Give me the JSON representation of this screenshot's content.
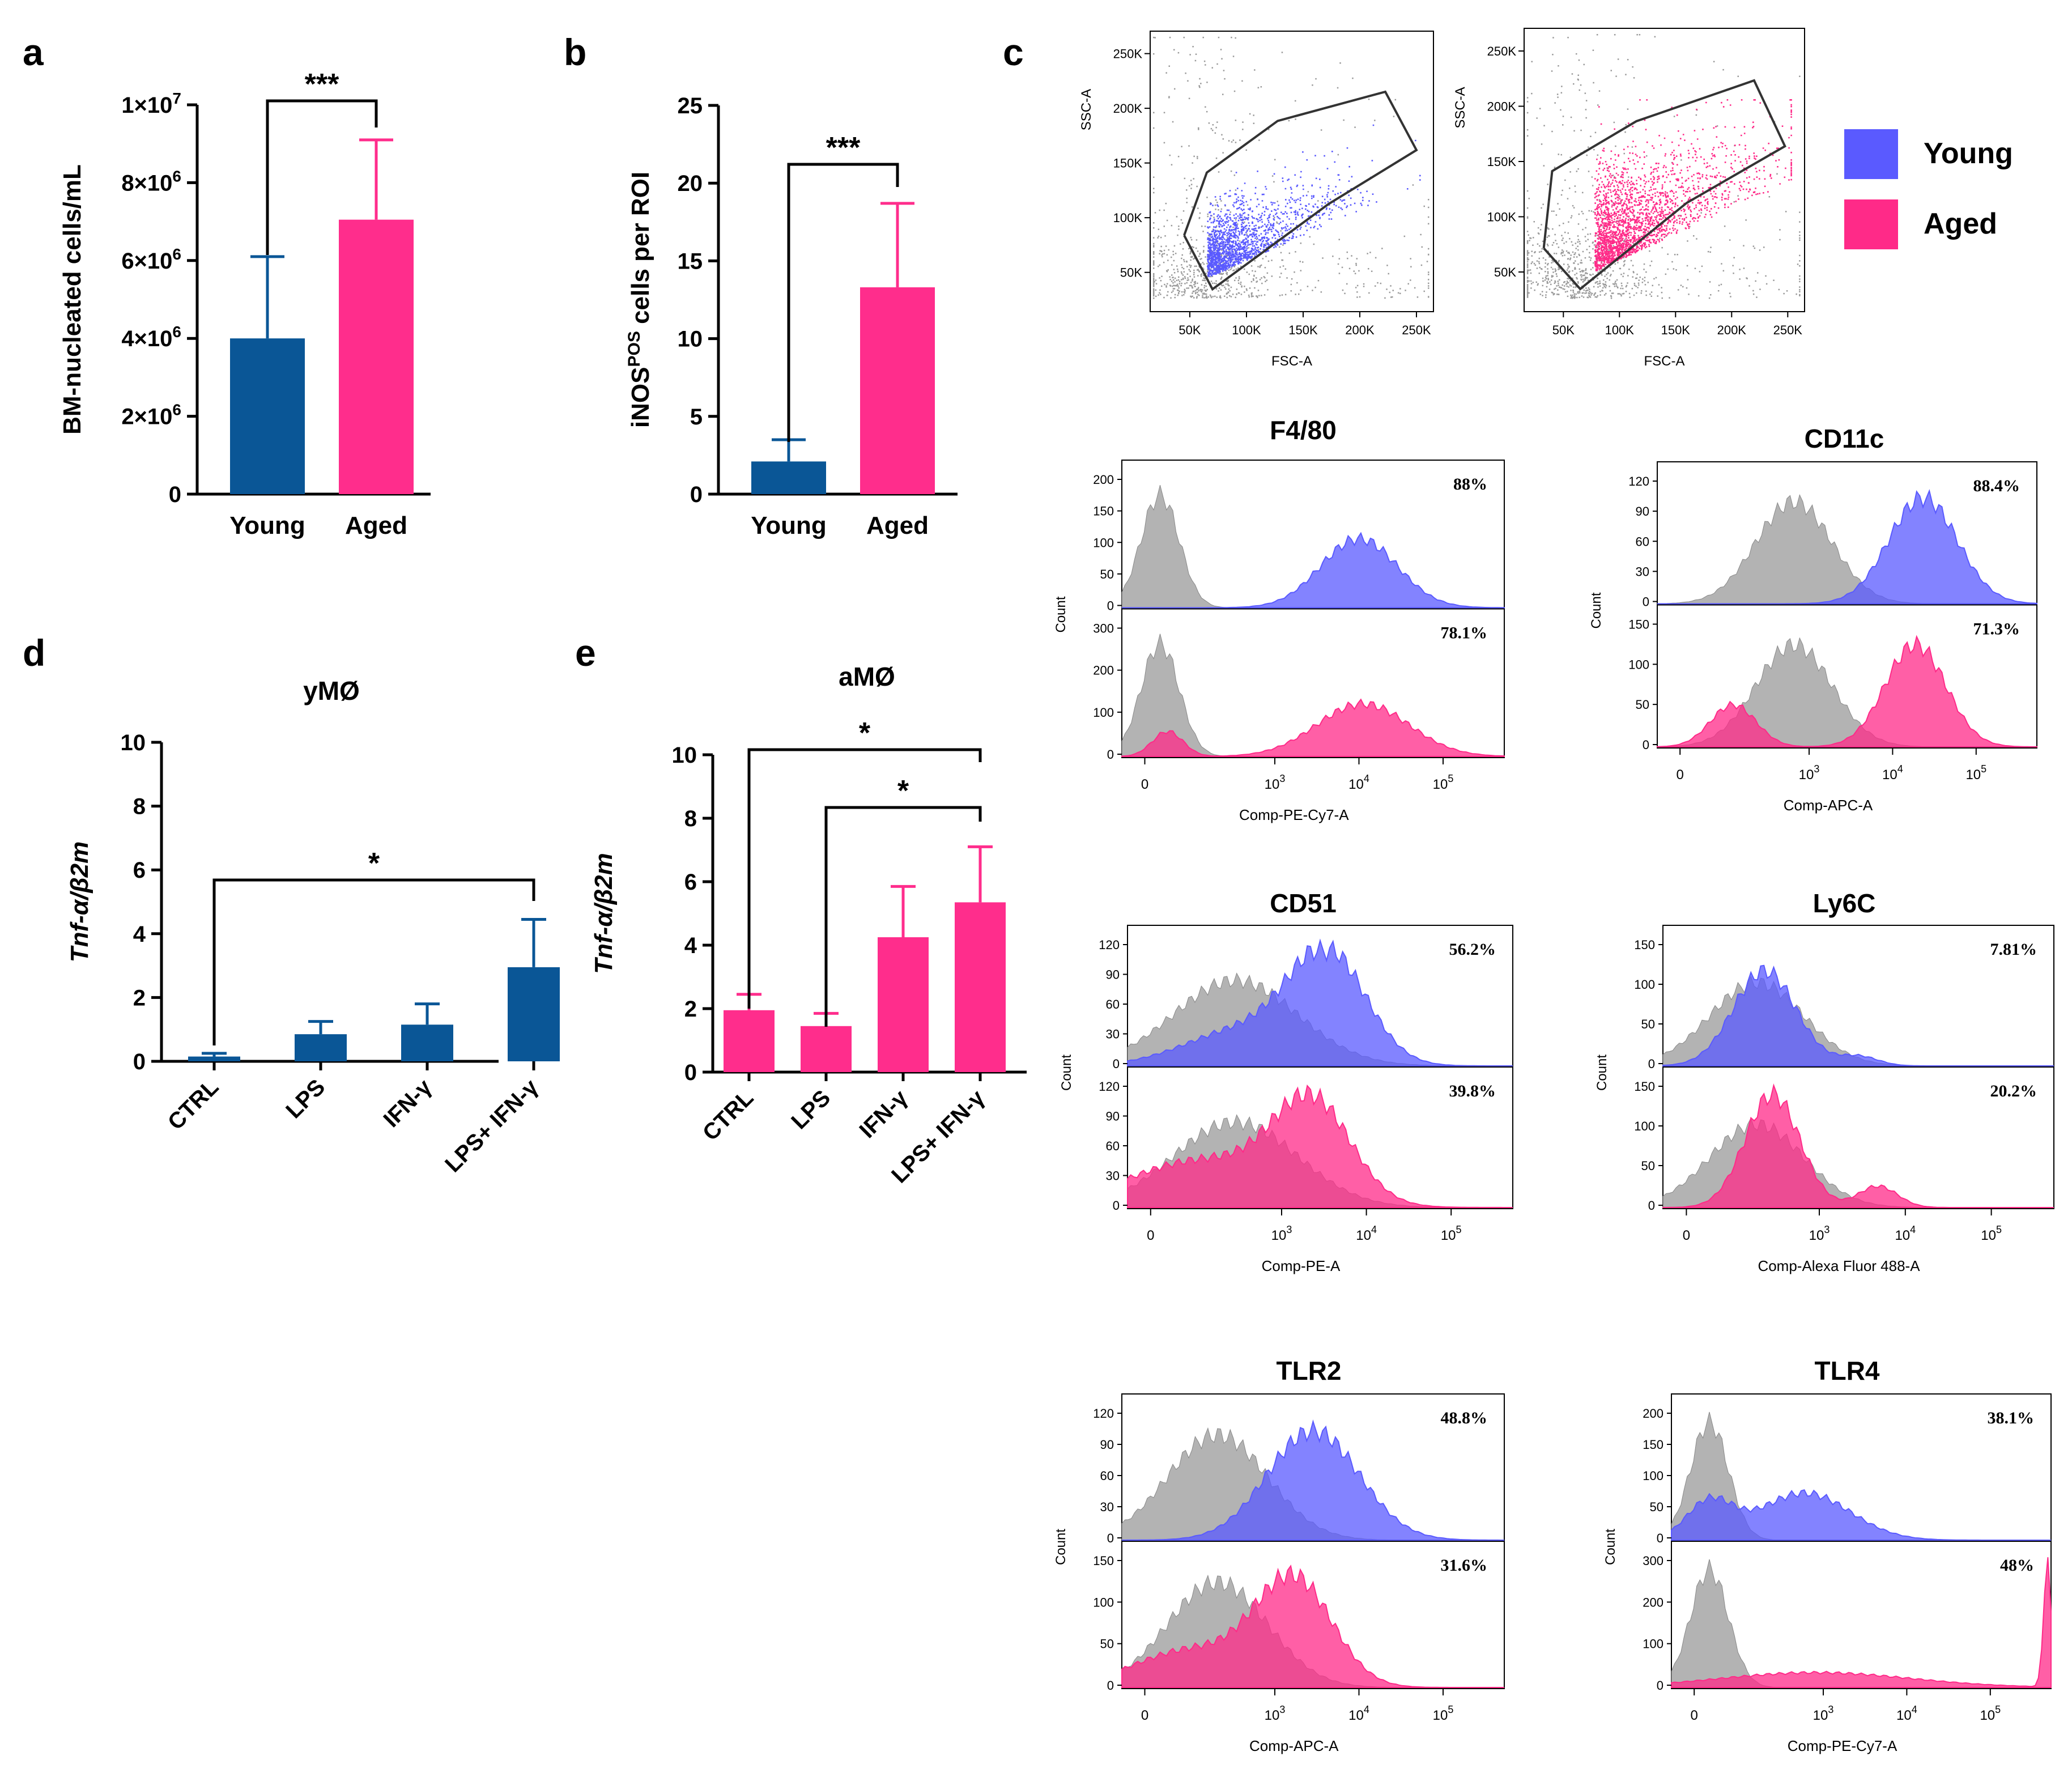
{
  "colors": {
    "young": "#0a5696",
    "aged": "#ff2d8c",
    "flow_young": "#5a5aff",
    "flow_aged": "#ff2a88",
    "control": "#a6a6a6",
    "scatter_bg": "#9a9a9a"
  },
  "panels": {
    "a": {
      "letter": "a"
    },
    "b": {
      "letter": "b"
    },
    "c": {
      "letter": "c"
    },
    "d": {
      "letter": "d"
    },
    "e": {
      "letter": "e"
    }
  },
  "legend": {
    "young": "Young",
    "aged": "Aged"
  },
  "chart_data": [
    {
      "id": "a",
      "type": "bar",
      "title": "",
      "categories": [
        "Young",
        "Aged"
      ],
      "values": [
        4000000.0,
        7050000.0
      ],
      "errors": [
        2100000.0,
        2050000.0
      ],
      "ylabel": "BM-nucleated cells/mL",
      "xlabel": "",
      "ylim": [
        0,
        10000000.0
      ],
      "yticks": [
        0,
        2000000.0,
        4000000.0,
        6000000.0,
        8000000.0,
        10000000.0
      ],
      "ytick_labels": [
        "0",
        "2×10",
        "4×10",
        "6×10",
        "8×10",
        "1×10"
      ],
      "ytick_sups": [
        "",
        "6",
        "6",
        "6",
        "6",
        "7"
      ],
      "significance": [
        {
          "from": 0,
          "to": 1,
          "label": "***"
        }
      ]
    },
    {
      "id": "b",
      "type": "bar",
      "title": "",
      "categories": [
        "Young",
        "Aged"
      ],
      "values": [
        2.1,
        13.3
      ],
      "errors": [
        1.4,
        5.4
      ],
      "ylabel": "iNOS",
      "ylabel_sup": "POS",
      "ylabel_rest": " cells per ROI",
      "xlabel": "",
      "ylim": [
        0,
        25
      ],
      "yticks": [
        0,
        5,
        10,
        15,
        20,
        25
      ],
      "ytick_labels": [
        "0",
        "5",
        "10",
        "15",
        "20",
        "25"
      ],
      "significance": [
        {
          "from": 0,
          "to": 1,
          "label": "***"
        }
      ]
    },
    {
      "id": "d",
      "type": "bar",
      "title": "yMØ",
      "categories": [
        "CTRL",
        "LPS",
        "IFN-γ",
        "LPS+ IFN-γ"
      ],
      "values": [
        0.15,
        0.85,
        1.15,
        2.95
      ],
      "errors": [
        0.1,
        0.4,
        0.65,
        1.5
      ],
      "ylabel": "Tnf-α/β2m",
      "xlabel": "",
      "ylim": [
        0,
        10
      ],
      "yticks": [
        0,
        2,
        4,
        6,
        8,
        10
      ],
      "ytick_labels": [
        "0",
        "2",
        "4",
        "6",
        "8",
        "10"
      ],
      "significance": [
        {
          "from": 0,
          "to": 3,
          "label": "*"
        }
      ]
    },
    {
      "id": "e",
      "type": "bar",
      "title": "aMØ",
      "categories": [
        "CTRL",
        "LPS",
        "IFN-γ",
        "LPS+ IFN-γ"
      ],
      "values": [
        1.95,
        1.45,
        4.25,
        5.35
      ],
      "errors": [
        0.5,
        0.4,
        1.6,
        1.75
      ],
      "ylabel": "Tnf-α/β2m",
      "xlabel": "",
      "ylim": [
        0,
        10
      ],
      "yticks": [
        0,
        2,
        4,
        6,
        8,
        10
      ],
      "ytick_labels": [
        "0",
        "2",
        "4",
        "6",
        "8",
        "10"
      ],
      "significance": [
        {
          "from": 0,
          "to": 3,
          "label": "*"
        },
        {
          "from": 1,
          "to": 3,
          "label": "*"
        }
      ]
    },
    {
      "id": "c-scatter",
      "type": "scatter",
      "plots": [
        {
          "group": "Young",
          "xlabel": "FSC-A",
          "ylabel": "SSC-A",
          "xticks": [
            "50K",
            "100K",
            "150K",
            "200K",
            "250K"
          ],
          "yticks": [
            "50K",
            "100K",
            "150K",
            "200K",
            "250K"
          ]
        },
        {
          "group": "Aged",
          "xlabel": "FSC-A",
          "ylabel": "SSC-A",
          "xticks": [
            "50K",
            "100K",
            "150K",
            "200K",
            "250K"
          ],
          "yticks": [
            "50K",
            "100K",
            "150K",
            "200K",
            "250K"
          ]
        }
      ]
    },
    {
      "id": "c-histograms",
      "type": "area",
      "markers": [
        {
          "title": "F4/80",
          "xlabel": "Comp-PE-Cy7-A",
          "young_pct": "88%",
          "aged_pct": "78.1%",
          "young_yticks": [
            "0",
            "50",
            "100",
            "150",
            "200"
          ],
          "aged_yticks": [
            "0",
            "100",
            "200",
            "300"
          ]
        },
        {
          "title": "CD11c",
          "xlabel": "Comp-APC-A",
          "young_pct": "88.4%",
          "aged_pct": "71.3%",
          "young_yticks": [
            "0",
            "30",
            "60",
            "90",
            "120"
          ],
          "aged_yticks": [
            "0",
            "50",
            "100",
            "150"
          ]
        },
        {
          "title": "CD51",
          "xlabel": "Comp-PE-A",
          "young_pct": "56.2%",
          "aged_pct": "39.8%",
          "young_yticks": [
            "0",
            "30",
            "60",
            "90",
            "120"
          ],
          "aged_yticks": [
            "0",
            "30",
            "60",
            "90",
            "120"
          ]
        },
        {
          "title": "Ly6C",
          "xlabel": "Comp-Alexa Fluor 488-A",
          "young_pct": "7.81%",
          "aged_pct": "20.2%",
          "young_yticks": [
            "0",
            "50",
            "100",
            "150"
          ],
          "aged_yticks": [
            "0",
            "50",
            "100",
            "150"
          ]
        },
        {
          "title": "TLR2",
          "xlabel": "Comp-APC-A",
          "young_pct": "48.8%",
          "aged_pct": "31.6%",
          "young_yticks": [
            "0",
            "30",
            "60",
            "90",
            "120"
          ],
          "aged_yticks": [
            "0",
            "50",
            "100",
            "150"
          ]
        },
        {
          "title": "TLR4",
          "xlabel": "Comp-PE-Cy7-A",
          "young_pct": "38.1%",
          "aged_pct": "48%",
          "young_yticks": [
            "0",
            "50",
            "100",
            "150",
            "200"
          ],
          "aged_yticks": [
            "0",
            "100",
            "200",
            "300"
          ]
        }
      ],
      "ylabel": "Count",
      "xticks": [
        "0",
        "10",
        "10",
        "10"
      ],
      "xtick_sups": [
        "",
        "3",
        "4",
        "5"
      ]
    }
  ]
}
